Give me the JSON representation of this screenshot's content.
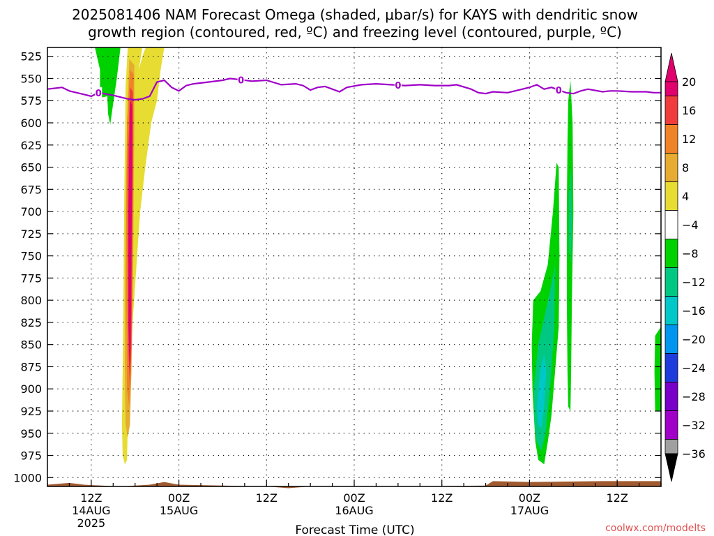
{
  "chart_data": {
    "type": "heatmap",
    "title_line1": "2025081406 NAM Forecast Omega (shaded, μbar/s) for KAYS with dendritic snow",
    "title_line2": "growth region (contoured, red, ºC) and freezing level (contoured, purple, ºC)",
    "xlabel": "Forecast Time (UTC)",
    "ylabel": "",
    "credit": "coolwx.com/modelts",
    "x_range_hours": [
      0,
      84
    ],
    "y_axis": {
      "scale": "pressure (reversed)",
      "range": [
        1010,
        515
      ],
      "ticks": [
        525,
        550,
        575,
        600,
        625,
        650,
        675,
        700,
        725,
        750,
        775,
        800,
        825,
        850,
        875,
        900,
        925,
        950,
        975,
        1000
      ]
    },
    "x_ticks": [
      {
        "hour": 6,
        "label": "12Z",
        "date": "14AUG",
        "year": "2025"
      },
      {
        "hour": 18,
        "label": "00Z",
        "date": "15AUG",
        "year": ""
      },
      {
        "hour": 30,
        "label": "12Z",
        "date": "",
        "year": ""
      },
      {
        "hour": 42,
        "label": "00Z",
        "date": "16AUG",
        "year": ""
      },
      {
        "hour": 54,
        "label": "12Z",
        "date": "",
        "year": ""
      },
      {
        "hour": 66,
        "label": "00Z",
        "date": "17AUG",
        "year": ""
      },
      {
        "hour": 78,
        "label": "12Z",
        "date": "",
        "year": ""
      }
    ],
    "grid": true,
    "legend": {
      "placement": "right",
      "labels": [
        "20",
        "16",
        "12",
        "8",
        "4",
        "−4",
        "−8",
        "−12",
        "−16",
        "−20",
        "−24",
        "−28",
        "−32",
        "−36"
      ],
      "colors": [
        "#e0006e",
        "#f03c3c",
        "#f08228",
        "#e6ac32",
        "#e6dc32",
        "#ffffff",
        "#00d200",
        "#00c882",
        "#00c8c8",
        "#0096f0",
        "#1e3cdc",
        "#7800c8",
        "#a000c8",
        "#a0a0a0"
      ],
      "top_arrow_color": "#e0006e",
      "bottom_arrow_color": "#000000"
    },
    "series": [
      {
        "name": "freezing level",
        "kind": "contour",
        "label": "0",
        "color": "#a000c8",
        "points": [
          [
            0,
            562
          ],
          [
            2,
            560
          ],
          [
            3,
            564
          ],
          [
            4,
            566
          ],
          [
            5,
            568
          ],
          [
            6,
            570
          ],
          [
            7,
            566
          ],
          [
            9,
            569
          ],
          [
            10,
            571
          ],
          [
            11,
            573
          ],
          [
            12,
            574
          ],
          [
            13,
            573
          ],
          [
            14,
            570
          ],
          [
            15,
            554
          ],
          [
            16,
            552
          ],
          [
            17,
            560
          ],
          [
            18,
            564
          ],
          [
            19,
            558
          ],
          [
            20,
            556
          ],
          [
            22,
            554
          ],
          [
            24,
            552
          ],
          [
            25,
            550
          ],
          [
            26,
            551
          ],
          [
            28,
            553
          ],
          [
            30,
            552
          ],
          [
            32,
            557
          ],
          [
            34,
            556
          ],
          [
            35,
            558
          ],
          [
            36,
            563
          ],
          [
            37,
            560
          ],
          [
            38,
            559
          ],
          [
            39,
            562
          ],
          [
            40,
            565
          ],
          [
            41,
            560
          ],
          [
            43,
            557
          ],
          [
            45,
            556
          ],
          [
            47,
            557
          ],
          [
            49,
            558
          ],
          [
            51,
            557
          ],
          [
            53,
            558
          ],
          [
            55,
            558
          ],
          [
            56,
            557
          ],
          [
            58,
            562
          ],
          [
            59,
            566
          ],
          [
            60,
            567
          ],
          [
            61,
            565
          ],
          [
            63,
            566
          ],
          [
            64,
            564
          ],
          [
            66,
            560
          ],
          [
            67,
            557
          ],
          [
            68,
            562
          ],
          [
            69,
            560
          ],
          [
            70,
            563
          ],
          [
            71,
            566
          ],
          [
            72,
            567
          ],
          [
            73,
            564
          ],
          [
            74,
            562
          ],
          [
            76,
            565
          ],
          [
            77,
            564
          ],
          [
            78,
            564
          ],
          [
            80,
            565
          ],
          [
            82,
            565
          ],
          [
            83,
            566
          ],
          [
            84,
            566
          ]
        ],
        "label_hours": [
          7,
          26.5,
          48,
          70
        ]
      }
    ],
    "omega_regions": [
      {
        "value": -6,
        "color": "#00d200",
        "points": [
          [
            6.5,
            515
          ],
          [
            10,
            515
          ],
          [
            9.5,
            550
          ],
          [
            8.8,
            590
          ],
          [
            8.6,
            602
          ],
          [
            8.3,
            590
          ],
          [
            8.2,
            570
          ],
          [
            7.2,
            572
          ],
          [
            7.2,
            540
          ],
          [
            6.5,
            515
          ]
        ]
      },
      {
        "value": 6,
        "color": "#e6dc32",
        "points": [
          [
            12,
            515
          ],
          [
            13,
            515
          ],
          [
            12.8,
            525
          ],
          [
            12.5,
            540
          ],
          [
            13.2,
            520
          ],
          [
            13.5,
            515
          ],
          [
            16,
            515
          ],
          [
            15.5,
            540
          ],
          [
            15,
            575
          ],
          [
            14.2,
            600
          ],
          [
            13.4,
            650
          ],
          [
            12.7,
            700
          ],
          [
            12.2,
            760
          ],
          [
            11.7,
            820
          ],
          [
            11.3,
            880
          ],
          [
            11,
            940
          ],
          [
            10.9,
            980
          ],
          [
            10.6,
            985
          ],
          [
            10.3,
            975
          ],
          [
            10.2,
            940
          ],
          [
            10.3,
            880
          ],
          [
            10.4,
            800
          ],
          [
            10.5,
            700
          ],
          [
            10.7,
            560
          ],
          [
            11,
            515
          ]
        ]
      },
      {
        "value": 10,
        "color": "#e6ac32",
        "points": [
          [
            11.2,
            528
          ],
          [
            11.9,
            535
          ],
          [
            11.9,
            600
          ],
          [
            11.8,
            700
          ],
          [
            11.7,
            800
          ],
          [
            11.5,
            880
          ],
          [
            11.3,
            940
          ],
          [
            11,
            955
          ],
          [
            10.7,
            940
          ],
          [
            10.6,
            880
          ],
          [
            10.6,
            800
          ],
          [
            10.7,
            700
          ],
          [
            10.9,
            600
          ],
          [
            11.2,
            528
          ]
        ]
      },
      {
        "value": 14,
        "color": "#f08228",
        "points": [
          [
            11.3,
            540
          ],
          [
            11.8,
            545
          ],
          [
            11.8,
            600
          ],
          [
            11.7,
            700
          ],
          [
            11.6,
            800
          ],
          [
            11.4,
            880
          ],
          [
            11.2,
            920
          ],
          [
            10.9,
            900
          ],
          [
            10.8,
            800
          ],
          [
            10.8,
            700
          ],
          [
            10.9,
            600
          ],
          [
            11.3,
            540
          ]
        ]
      },
      {
        "value": 18,
        "color": "#f03c3c",
        "points": [
          [
            11.3,
            560
          ],
          [
            11.7,
            565
          ],
          [
            11.7,
            650
          ],
          [
            11.6,
            750
          ],
          [
            11.5,
            850
          ],
          [
            11.3,
            900
          ],
          [
            11.1,
            860
          ],
          [
            11,
            750
          ],
          [
            11,
            650
          ],
          [
            11.3,
            560
          ]
        ]
      },
      {
        "value": 24,
        "color": "#e0006e",
        "points": [
          [
            11.3,
            575
          ],
          [
            11.6,
            580
          ],
          [
            11.6,
            650
          ],
          [
            11.5,
            750
          ],
          [
            11.4,
            850
          ],
          [
            11.25,
            880
          ],
          [
            11.1,
            830
          ],
          [
            11.1,
            700
          ],
          [
            11.3,
            575
          ]
        ]
      },
      {
        "value": -6,
        "color": "#00d200",
        "points": [
          [
            66.5,
            800
          ],
          [
            67.5,
            790
          ],
          [
            68.5,
            760
          ],
          [
            69.2,
            700
          ],
          [
            69.7,
            645
          ],
          [
            70,
            650
          ],
          [
            70.1,
            750
          ],
          [
            70,
            830
          ],
          [
            69.5,
            880
          ],
          [
            69,
            930
          ],
          [
            68.5,
            960
          ],
          [
            68,
            985
          ],
          [
            67.2,
            980
          ],
          [
            66.8,
            960
          ],
          [
            66.4,
            900
          ],
          [
            66.3,
            850
          ]
        ]
      },
      {
        "value": -10,
        "color": "#00c882",
        "points": [
          [
            66.6,
            900
          ],
          [
            67.2,
            850
          ],
          [
            68,
            820
          ],
          [
            68.8,
            790
          ],
          [
            69.5,
            760
          ],
          [
            69.4,
            830
          ],
          [
            68.8,
            900
          ],
          [
            68.2,
            950
          ],
          [
            67.6,
            970
          ],
          [
            67,
            960
          ],
          [
            66.7,
            940
          ]
        ]
      },
      {
        "value": -14,
        "color": "#00c8c8",
        "points": [
          [
            67,
            920
          ],
          [
            67.5,
            880
          ],
          [
            68,
            860
          ],
          [
            68.3,
            880
          ],
          [
            68,
            920
          ],
          [
            67.6,
            945
          ],
          [
            67.2,
            940
          ]
        ]
      },
      {
        "value": -6,
        "color": "#00d200",
        "points": [
          [
            71.3,
            575
          ],
          [
            71.6,
            552
          ],
          [
            71.9,
            600
          ],
          [
            72,
            700
          ],
          [
            71.8,
            800
          ],
          [
            71.7,
            880
          ],
          [
            71.6,
            925
          ],
          [
            71.3,
            920
          ],
          [
            71.2,
            880
          ],
          [
            71.1,
            800
          ],
          [
            71.1,
            700
          ],
          [
            71.2,
            620
          ]
        ]
      },
      {
        "value": -10,
        "color": "#00c882",
        "points": [
          [
            71.4,
            680
          ],
          [
            71.7,
            650
          ],
          [
            71.8,
            720
          ],
          [
            71.6,
            760
          ],
          [
            71.4,
            740
          ]
        ]
      },
      {
        "value": -6,
        "color": "#00d200",
        "points": [
          [
            83.2,
            840
          ],
          [
            84,
            830
          ],
          [
            84,
            925
          ],
          [
            83.2,
            925
          ],
          [
            83.1,
            880
          ]
        ]
      }
    ],
    "terrain": {
      "color": "#a05a30",
      "points": [
        [
          0,
          1008
        ],
        [
          3,
          1006
        ],
        [
          5,
          1008
        ],
        [
          10,
          1010
        ],
        [
          14,
          1008
        ],
        [
          16,
          1005
        ],
        [
          18,
          1008
        ],
        [
          30,
          1010
        ],
        [
          33,
          1012
        ],
        [
          36,
          1010
        ],
        [
          50,
          1010
        ],
        [
          60,
          1009
        ],
        [
          61,
          1004
        ],
        [
          66,
          1005
        ],
        [
          76,
          1004
        ],
        [
          84,
          1004
        ]
      ]
    }
  }
}
